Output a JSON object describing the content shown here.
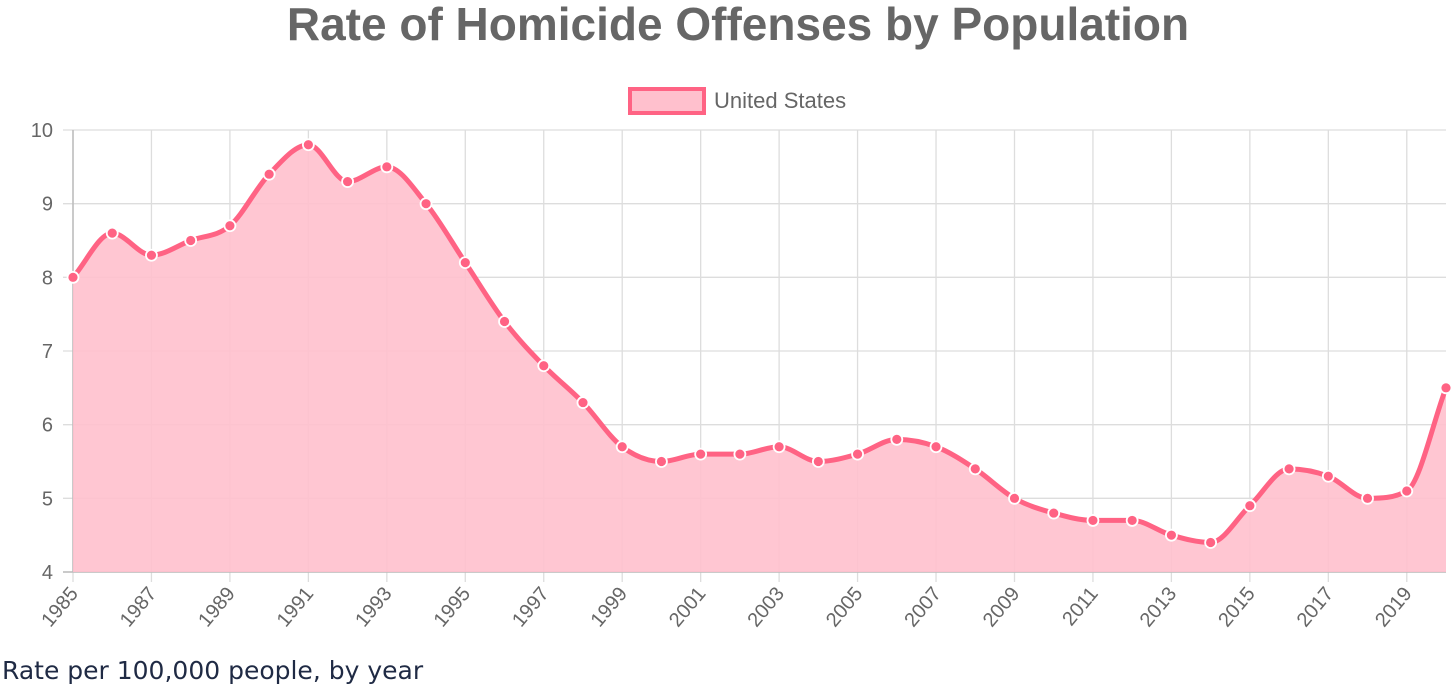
{
  "chart_data": {
    "type": "area",
    "title": "Rate of Homicide Offenses by Population",
    "caption": "Rate per 100,000 people, by year",
    "xlabel": "",
    "ylabel": "",
    "x": [
      1985,
      1986,
      1987,
      1988,
      1989,
      1990,
      1991,
      1992,
      1993,
      1994,
      1995,
      1996,
      1997,
      1998,
      1999,
      2000,
      2001,
      2002,
      2003,
      2004,
      2005,
      2006,
      2007,
      2008,
      2009,
      2010,
      2011,
      2012,
      2013,
      2014,
      2015,
      2016,
      2017,
      2018,
      2019,
      2020
    ],
    "x_tick_labels": [
      "1985",
      "1987",
      "1989",
      "1991",
      "1993",
      "1995",
      "1997",
      "1999",
      "2001",
      "2003",
      "2005",
      "2007",
      "2009",
      "2011",
      "2013",
      "2015",
      "2017",
      "2019"
    ],
    "y_tick_labels": [
      "4",
      "5",
      "6",
      "7",
      "8",
      "9",
      "10"
    ],
    "ylim": [
      4,
      10
    ],
    "grid": true,
    "legend_position": "top",
    "series": [
      {
        "name": "United States",
        "color": "#ff6384",
        "fill_color": "#ffc0cd",
        "values": [
          8.0,
          8.6,
          8.3,
          8.5,
          8.7,
          9.4,
          9.8,
          9.3,
          9.5,
          9.0,
          8.2,
          7.4,
          6.8,
          6.3,
          5.7,
          5.5,
          5.6,
          5.6,
          5.7,
          5.5,
          5.6,
          5.8,
          5.7,
          5.4,
          5.0,
          4.8,
          4.7,
          4.7,
          4.5,
          4.4,
          4.9,
          5.4,
          5.3,
          5.0,
          5.1,
          6.5
        ]
      }
    ]
  }
}
